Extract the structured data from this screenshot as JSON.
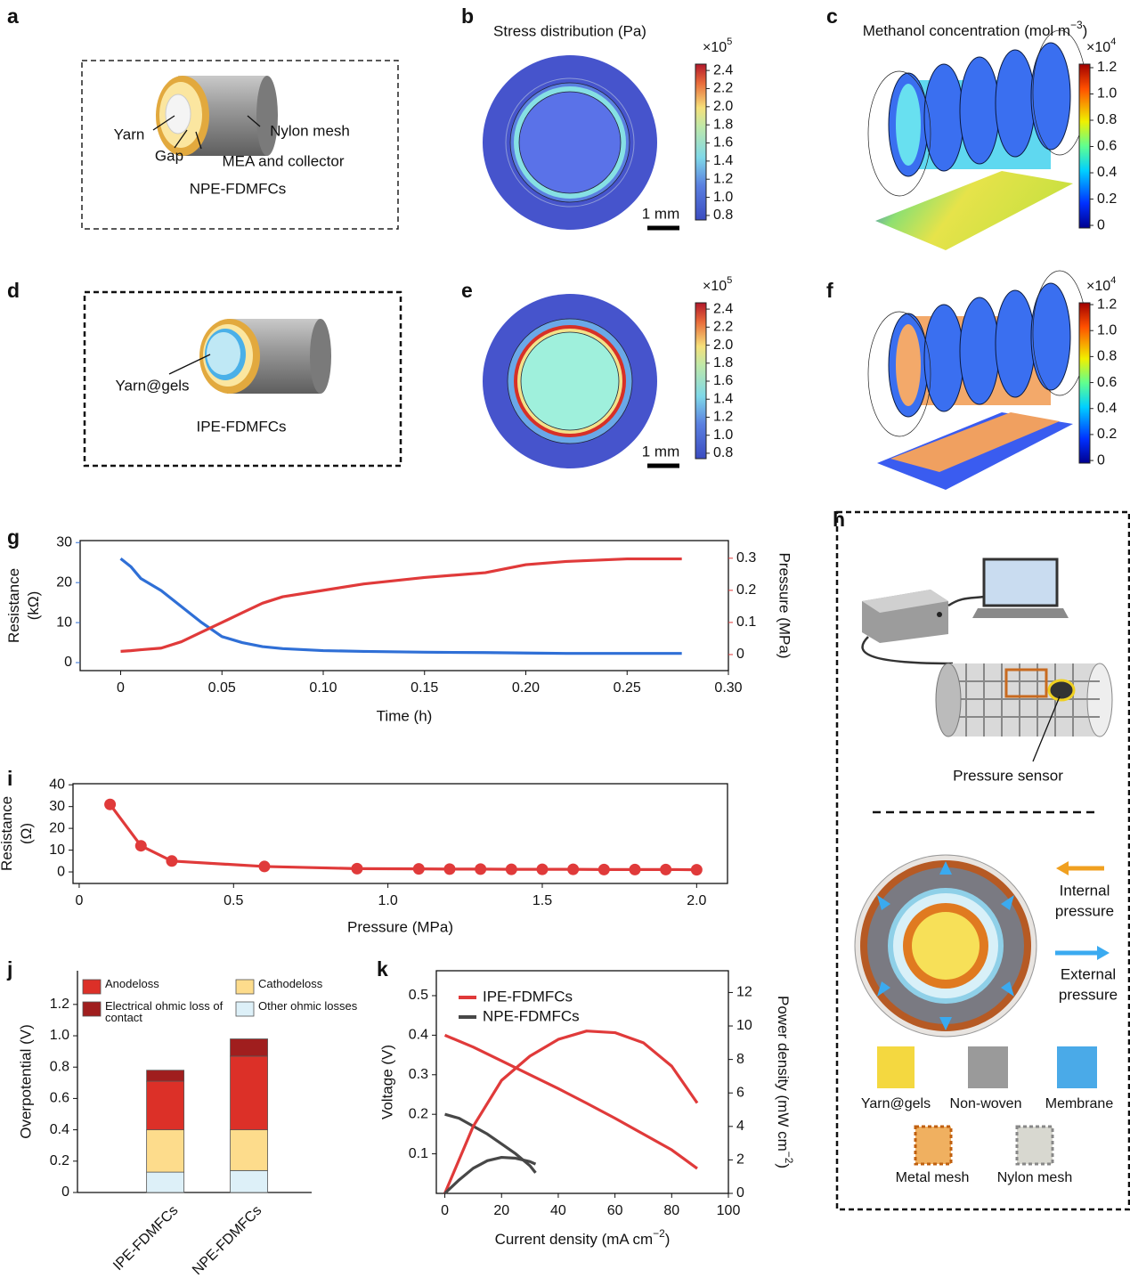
{
  "panel_letters": [
    "a",
    "b",
    "c",
    "d",
    "e",
    "f",
    "g",
    "h",
    "i",
    "j",
    "k"
  ],
  "a": {
    "labels": [
      "Yarn",
      "Gap",
      "MEA and collector",
      "Nylon mesh"
    ],
    "caption": "NPE-FDMFCs"
  },
  "d": {
    "labels": [
      "Yarn@gels"
    ],
    "caption": "IPE-FDMFCs"
  },
  "b": {
    "title": "Stress distribution (Pa)",
    "scale_bar": "1 mm",
    "colorbar": {
      "exponent": {
        "base": "×10",
        "sup": "5"
      },
      "lim": [
        0.75,
        2.47
      ],
      "ticks": [
        0.8,
        {
          "value": 1,
          "label": "1.0"
        },
        1.2,
        1.4,
        1.6,
        1.8,
        {
          "value": 2,
          "label": "2.0"
        },
        2.2,
        2.4
      ]
    }
  },
  "c": {
    "title": {
      "base": "Methanol concentration (mol m",
      "sup": "−3",
      "tail": ")"
    },
    "colorbar": {
      "exponent": {
        "base": "×10",
        "sup": "4"
      },
      "lim": [
        -0.02,
        1.227
      ],
      "ticks": [
        0,
        0.2,
        0.4,
        0.6,
        0.8,
        {
          "value": 1,
          "label": "1.0"
        },
        1.2
      ]
    }
  },
  "e": {
    "scale_bar": "1 mm",
    "colorbar": {
      "exponent": {
        "base": "×10",
        "sup": "5"
      },
      "lim": [
        0.74,
        2.47
      ],
      "ticks": [
        0.8,
        {
          "value": 1,
          "label": "1.0"
        },
        1.2,
        1.4,
        1.6,
        1.8,
        {
          "value": 2,
          "label": "2.0"
        },
        2.2,
        2.4
      ]
    }
  },
  "f": {
    "colorbar": {
      "exponent": {
        "base": "×10",
        "sup": "4"
      },
      "lim": [
        -0.02,
        1.214
      ],
      "ticks": [
        0,
        0.2,
        0.4,
        0.6,
        0.8,
        {
          "value": 1,
          "label": "1.0"
        },
        1.2
      ]
    }
  },
  "h": {
    "sensor_label": "Pressure sensor",
    "arrows": [
      [
        "Internal",
        "pressure"
      ],
      [
        "External",
        "pressure"
      ]
    ],
    "materials": [
      "Yarn@gels",
      "Non-woven",
      "Membrane",
      "Metal mesh",
      "Nylon mesh"
    ]
  },
  "chart_data": [
    {
      "type": "line",
      "xlabel": "Time (h)",
      "ylabel": [
        "Resistance",
        "(kΩ)"
      ],
      "y2label": "Pressure (MPa)",
      "x": [
        0,
        0.005,
        0.01,
        0.02,
        0.03,
        0.04,
        0.05,
        0.06,
        0.07,
        0.08,
        0.1,
        0.12,
        0.15,
        0.18,
        0.2,
        0.22,
        0.25,
        0.277
      ],
      "series": [
        {
          "name": "Resistance",
          "color": "#2f6fd6",
          "values": [
            26,
            24,
            21,
            18,
            14,
            10,
            6.5,
            5,
            4,
            3.5,
            3,
            2.8,
            2.6,
            2.5,
            2.4,
            2.3,
            2.3,
            2.3
          ]
        },
        {
          "name": "Pressure",
          "color": "#e03a3a",
          "axis": "y2",
          "values": [
            0.01,
            0.012,
            0.015,
            0.02,
            0.04,
            0.07,
            0.1,
            0.13,
            0.16,
            0.18,
            0.2,
            0.22,
            0.24,
            0.255,
            0.28,
            0.29,
            0.298,
            0.298
          ]
        }
      ],
      "xlim": [
        -0.02,
        0.3
      ],
      "xticks": [
        0,
        0.05,
        {
          "value": 0.1,
          "label": "0.10"
        },
        0.15,
        {
          "value": 0.2,
          "label": "0.20"
        },
        0.25,
        {
          "value": 0.3,
          "label": "0.30"
        }
      ],
      "ylim": [
        -2,
        30.5
      ],
      "yticks": [
        0,
        10,
        20,
        30
      ],
      "y2lim": [
        -0.05,
        0.355
      ],
      "y2ticks": [
        0,
        0.1,
        0.2,
        0.3
      ]
    },
    {
      "type": "line",
      "markers": true,
      "xlabel": "Pressure (MPa)",
      "ylabel": [
        "Resistance",
        "(Ω)"
      ],
      "x": [
        0.1,
        0.2,
        0.3,
        0.6,
        0.9,
        1.1,
        1.2,
        1.3,
        1.4,
        1.5,
        1.6,
        1.7,
        1.8,
        1.9,
        2.0
      ],
      "series": [
        {
          "name": "Resistance",
          "color": "#e03a3a",
          "values": [
            31,
            12,
            5,
            2.5,
            1.5,
            1.4,
            1.3,
            1.3,
            1.2,
            1.2,
            1.2,
            1.1,
            1.1,
            1.1,
            1.0
          ]
        }
      ],
      "xlim": [
        -0.02,
        2.1
      ],
      "xticks": [
        0,
        0.5,
        {
          "value": 1,
          "label": "1.0"
        },
        1.5,
        {
          "value": 2,
          "label": "2.0"
        }
      ],
      "ylim": [
        -5.3,
        40.5
      ],
      "yticks": [
        0,
        10,
        20,
        30,
        40
      ]
    },
    {
      "type": "bar",
      "stacked": true,
      "legend": "upper left",
      "ylabel": "Overpotential (V)",
      "categories": [
        "IPE-FDMFCs",
        "NPE-FDMFCs"
      ],
      "series": [
        {
          "name": "Other ohmic losses",
          "color": "#ddf0f8",
          "values": [
            0.13,
            0.14
          ]
        },
        {
          "name": "Cathodeloss",
          "color": "#fddc8c",
          "values": [
            0.27,
            0.26
          ]
        },
        {
          "name": "Anodeloss",
          "color": "#dc3028",
          "values": [
            0.31,
            0.47
          ]
        },
        {
          "name": "Electrical ohmic loss of contact",
          "color": "#a01e1e",
          "values": [
            0.07,
            0.11
          ]
        }
      ],
      "ylim": [
        0,
        1.415
      ],
      "yticks": [
        0,
        0.2,
        0.4,
        0.6,
        0.8,
        {
          "value": 1,
          "label": "1.0"
        },
        1.2
      ]
    },
    {
      "type": "line",
      "legend": "upper left",
      "xlabel": {
        "base": "Current density (mA cm",
        "sup": "−2",
        "tail": ")"
      },
      "ylabel": "Voltage (V)",
      "y2label": {
        "base": "Power density (mW cm",
        "sup": "−2",
        "tail": ")"
      },
      "series": [
        {
          "name": "IPE-FDMFCs",
          "color": "#e03a3a",
          "x": [
            0,
            10,
            20,
            30,
            40,
            50,
            60,
            70,
            80,
            89
          ],
          "values": [
            0.4,
            0.37,
            0.335,
            0.3,
            0.265,
            0.228,
            0.19,
            0.15,
            0.11,
            0.063
          ]
        },
        {
          "name": "NPE-FDMFCs",
          "color": "#474747",
          "x": [
            0,
            5,
            10,
            15,
            20,
            25,
            30,
            32
          ],
          "values": [
            0.2,
            0.19,
            0.17,
            0.15,
            0.125,
            0.1,
            0.07,
            0.052
          ]
        },
        {
          "color": "#e03a3a",
          "axis": "y2",
          "x": [
            0,
            10,
            20,
            30,
            40,
            50,
            60,
            70,
            80,
            89
          ],
          "values": [
            0,
            4,
            6.75,
            8.2,
            9.2,
            9.7,
            9.6,
            9,
            7.6,
            5.4
          ]
        },
        {
          "color": "#474747",
          "axis": "y2",
          "x": [
            0,
            5,
            10,
            15,
            20,
            25,
            30,
            32
          ],
          "values": [
            0,
            0.8,
            1.5,
            1.95,
            2.15,
            2.1,
            1.9,
            1.75
          ]
        }
      ],
      "xlim": [
        -3,
        100
      ],
      "xticks": [
        0,
        20,
        40,
        60,
        80,
        100
      ],
      "ylim": [
        0,
        0.563
      ],
      "yticks": [
        0.1,
        0.2,
        0.3,
        0.4,
        0.5
      ],
      "y2lim": [
        0,
        13.3
      ],
      "y2ticks": [
        0,
        2,
        4,
        6,
        8,
        10,
        12
      ]
    }
  ]
}
